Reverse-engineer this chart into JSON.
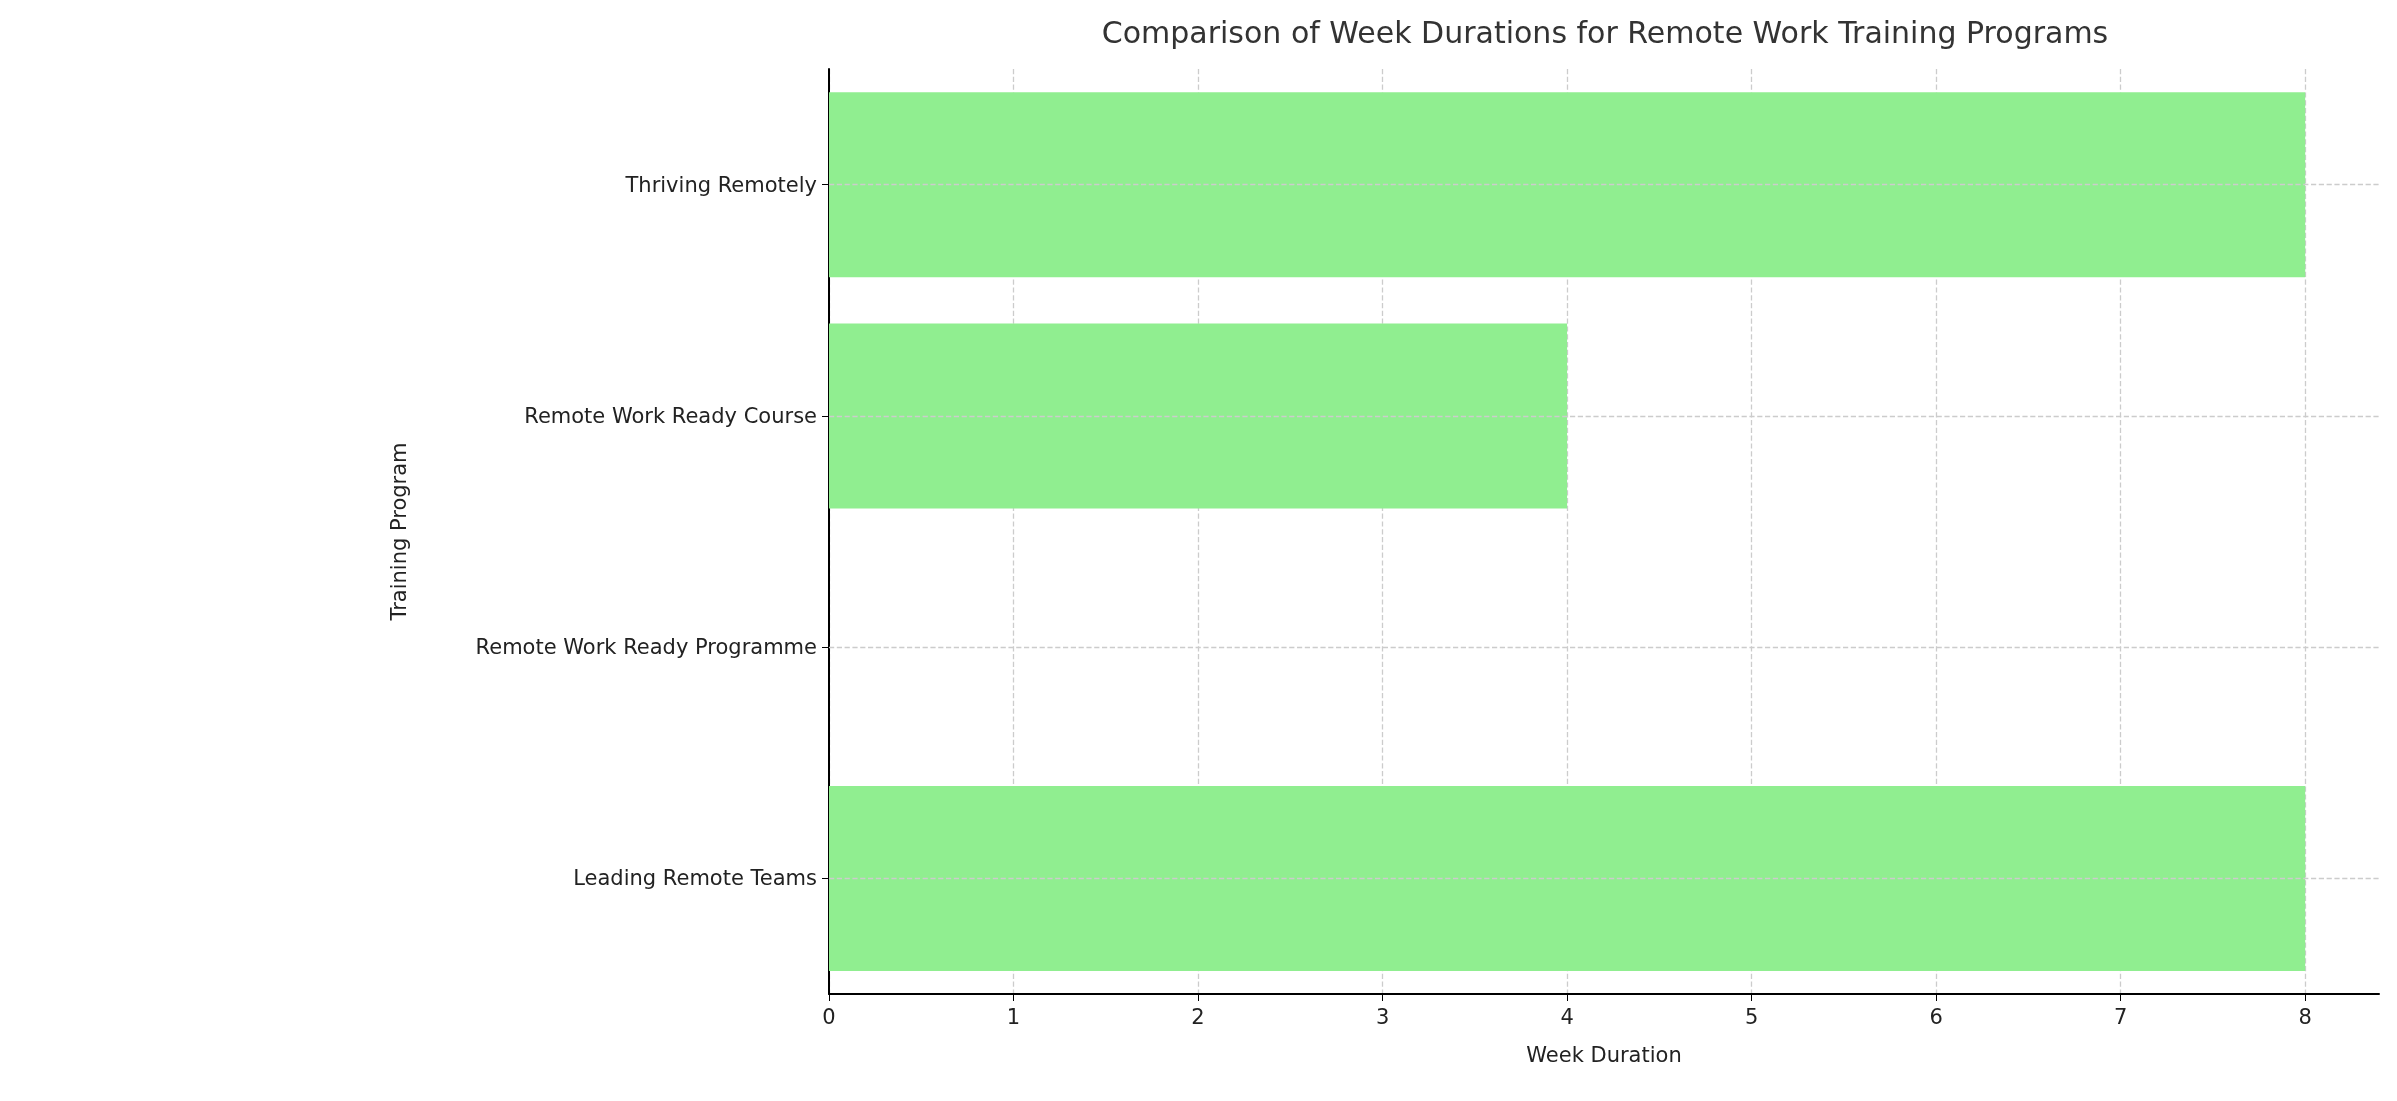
{
  "chart_data": {
    "type": "bar",
    "orientation": "horizontal",
    "title": "Comparison of Week Durations for Remote Work Training Programs",
    "xlabel": "Week Duration",
    "ylabel": "Training Program",
    "categories": [
      "Thriving Remotely",
      "Remote Work Ready Course",
      "Remote Work Ready Programme",
      "Leading Remote Teams"
    ],
    "values": [
      8,
      4,
      null,
      8
    ],
    "color": "#90ee90",
    "xlim": [
      0,
      8.4
    ],
    "xticks": [
      0,
      1,
      2,
      3,
      4,
      5,
      6,
      7,
      8
    ],
    "grid": true
  }
}
